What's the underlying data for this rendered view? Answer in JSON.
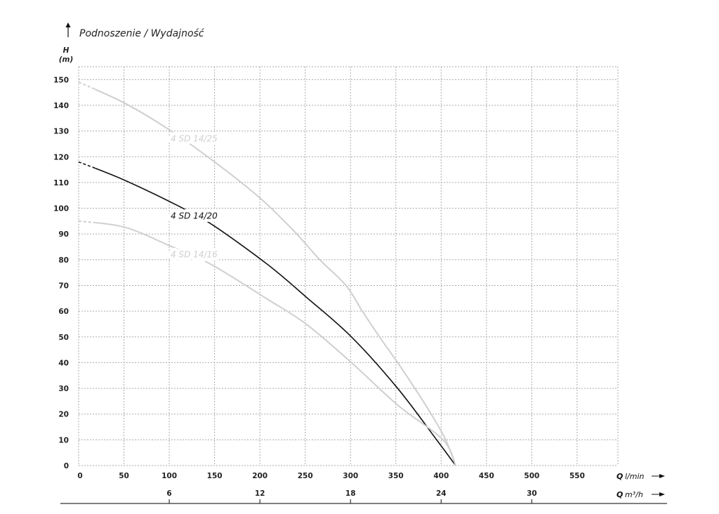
{
  "chart_data": {
    "type": "line",
    "title": "Podnoszenie / Wydajność",
    "ylabel": "H",
    "yunit": "(m)",
    "xlabel": "Q",
    "xunit": "l/min",
    "x2label": "Q",
    "x2unit": "m³/h",
    "xlim": [
      0,
      595
    ],
    "ylim": [
      0,
      155
    ],
    "grid": true,
    "grid_style": "dotted",
    "xticks": [
      0,
      50,
      100,
      150,
      200,
      250,
      300,
      350,
      400,
      450,
      500,
      550
    ],
    "yticks": [
      0,
      10,
      20,
      30,
      40,
      50,
      60,
      70,
      80,
      90,
      100,
      110,
      120,
      130,
      140,
      150
    ],
    "x2ticks": [
      6,
      12,
      18,
      24,
      30
    ],
    "x2_per_x": 0.06,
    "series": [
      {
        "name": "4 SD 14/25",
        "color": "#cfcfcf",
        "label_at": [
          100,
          127
        ],
        "points": [
          [
            0,
            149
          ],
          [
            50,
            141
          ],
          [
            100,
            130.5
          ],
          [
            150,
            118
          ],
          [
            200,
            104
          ],
          [
            238,
            91
          ],
          [
            266,
            80
          ],
          [
            295,
            70
          ],
          [
            313,
            60
          ],
          [
            332,
            50
          ],
          [
            352,
            40
          ],
          [
            371,
            30
          ],
          [
            389,
            20
          ],
          [
            405,
            10
          ],
          [
            416,
            0
          ]
        ]
      },
      {
        "name": "4 SD 14/20",
        "color": "#111111",
        "label_at": [
          100,
          97
        ],
        "points": [
          [
            0,
            118
          ],
          [
            50,
            111
          ],
          [
            115,
            100
          ],
          [
            150,
            93
          ],
          [
            209,
            78
          ],
          [
            251,
            65.5
          ],
          [
            301,
            50
          ],
          [
            352,
            30
          ],
          [
            395,
            10
          ],
          [
            416,
            0
          ]
        ]
      },
      {
        "name": "4 SD 14/16",
        "color": "#cfcfcf",
        "label_at": [
          100,
          82
        ],
        "points": [
          [
            0,
            95
          ],
          [
            50,
            92.7
          ],
          [
            100,
            85.5
          ],
          [
            147,
            78
          ],
          [
            209,
            64.5
          ],
          [
            251,
            55
          ],
          [
            301,
            40
          ],
          [
            352,
            23.5
          ],
          [
            402,
            10
          ],
          [
            416,
            0
          ]
        ]
      }
    ],
    "dashed_until_x": 18
  }
}
